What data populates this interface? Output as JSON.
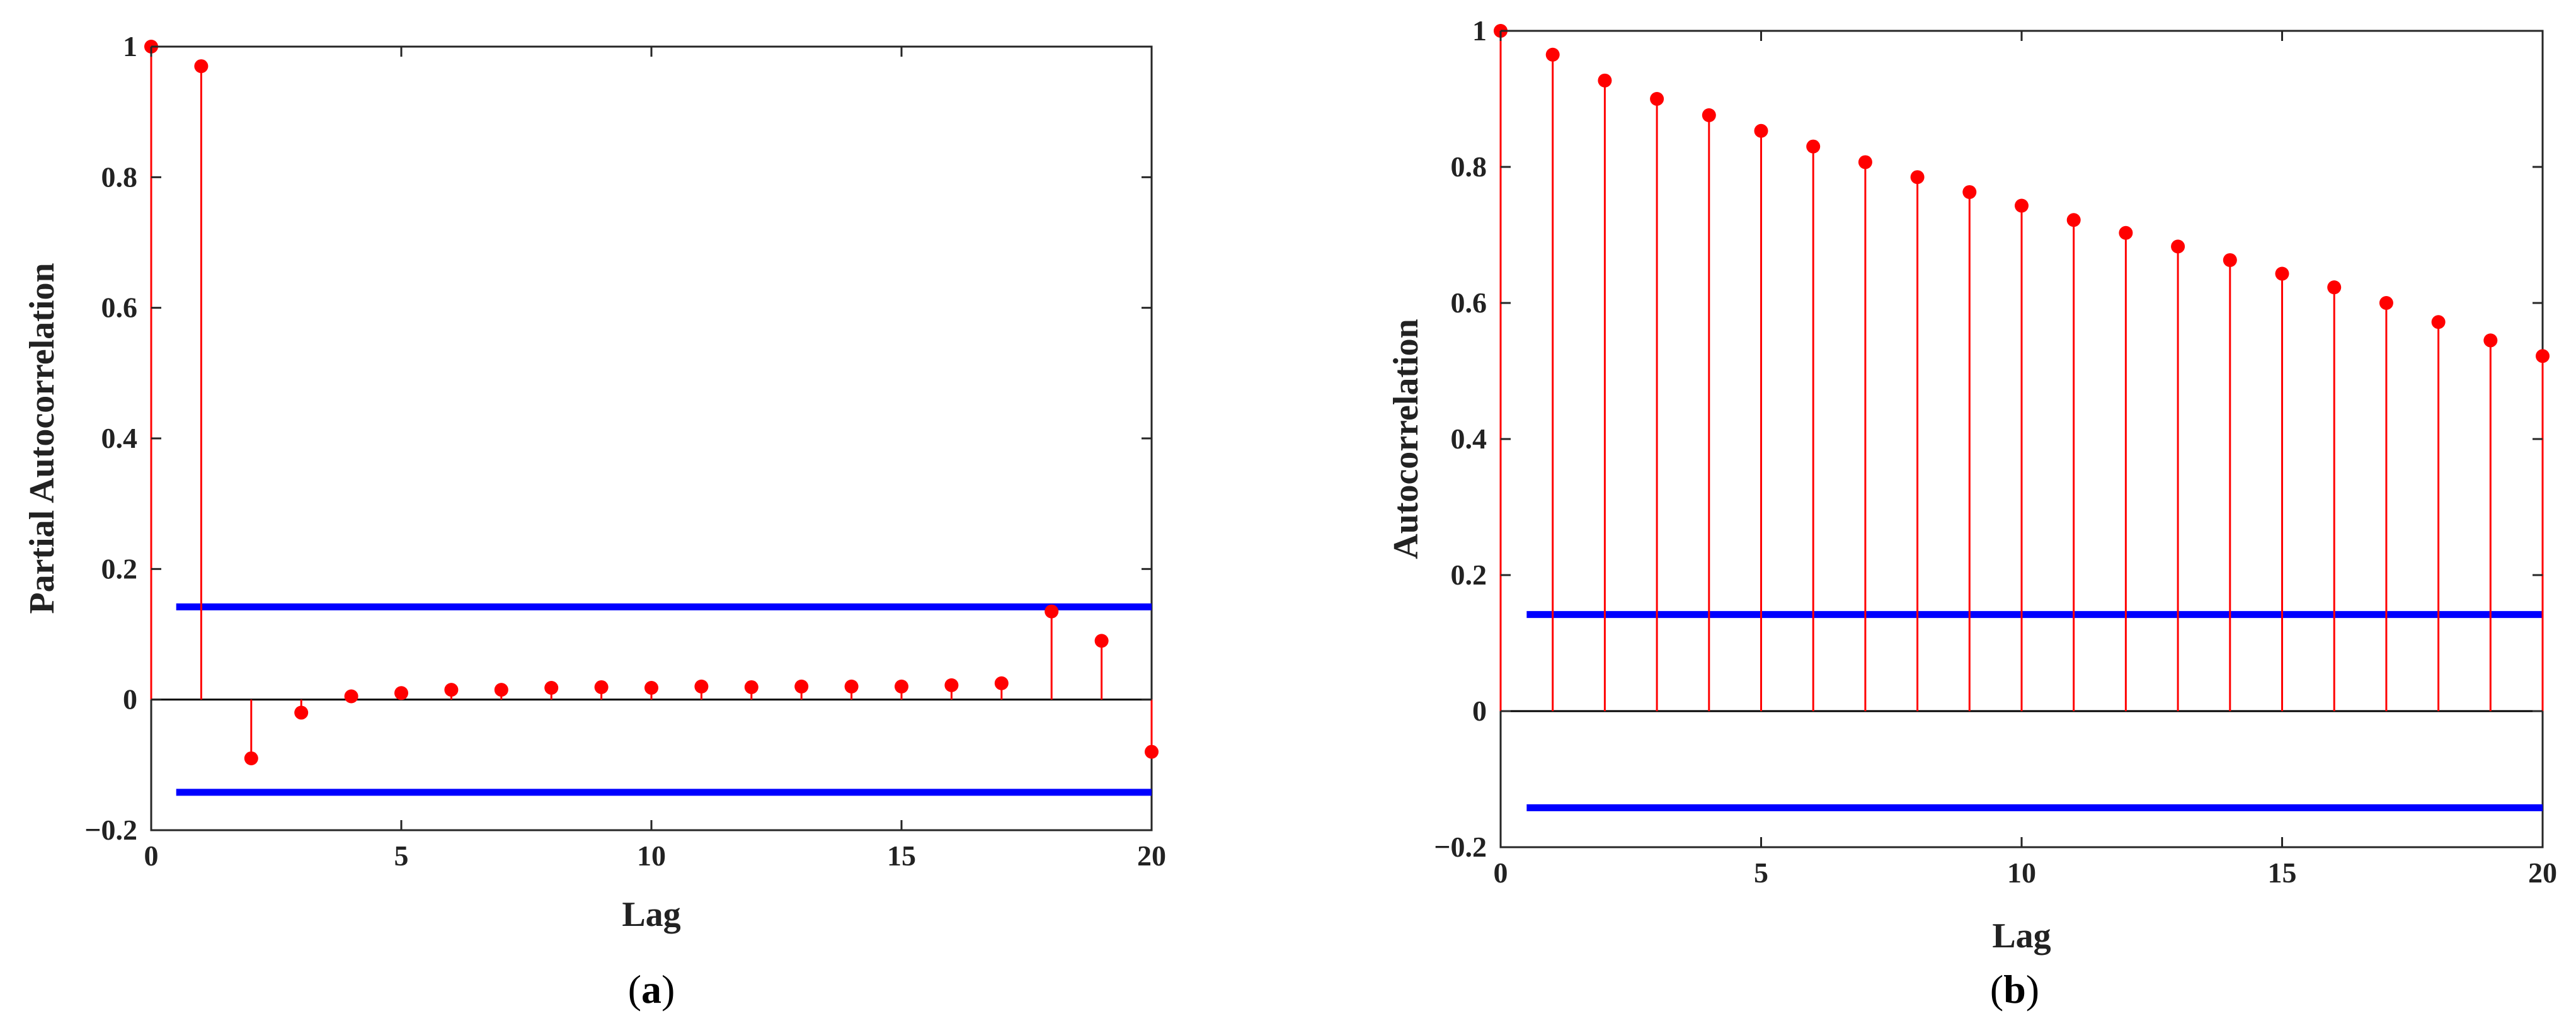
{
  "colors": {
    "stem": "#ff0000",
    "bound": "#0000ff",
    "axis": "#262626",
    "zero_line": "#000000"
  },
  "captions": {
    "a": {
      "open": "(",
      "letter": "a",
      "close": ")"
    },
    "b": {
      "open": "(",
      "letter": "b",
      "close": ")"
    }
  },
  "chart_data": [
    {
      "id": "a",
      "type": "stem",
      "title": "",
      "xlabel": "Lag",
      "ylabel": "Partial Autocorrelation",
      "xlim": [
        0,
        20
      ],
      "ylim": [
        -0.2,
        1
      ],
      "xticks": [
        0,
        5,
        10,
        15,
        20
      ],
      "yticks": [
        -0.2,
        0,
        0.2,
        0.4,
        0.6,
        0.8,
        1
      ],
      "ytick_labels": [
        "−0.2",
        "0",
        "0.2",
        "0.4",
        "0.6",
        "0.8",
        "1"
      ],
      "lags": [
        0,
        1,
        2,
        3,
        4,
        5,
        6,
        7,
        8,
        9,
        10,
        11,
        12,
        13,
        14,
        15,
        16,
        17,
        18,
        19,
        20
      ],
      "values": [
        1.0,
        0.97,
        -0.09,
        -0.02,
        0.005,
        0.01,
        0.015,
        0.015,
        0.018,
        0.019,
        0.018,
        0.02,
        0.019,
        0.02,
        0.02,
        0.02,
        0.022,
        0.025,
        0.135,
        0.09,
        -0.08
      ],
      "confidence_bounds": [
        0.142,
        -0.142
      ],
      "bound_xrange": [
        0.5,
        20
      ]
    },
    {
      "id": "b",
      "type": "stem",
      "title": "",
      "xlabel": "Lag",
      "ylabel": "Autocorrelation",
      "xlim": [
        0,
        20
      ],
      "ylim": [
        -0.2,
        1
      ],
      "xticks": [
        0,
        5,
        10,
        15,
        20
      ],
      "yticks": [
        -0.2,
        0,
        0.2,
        0.4,
        0.6,
        0.8,
        1
      ],
      "ytick_labels": [
        "−0.2",
        "0",
        "0.2",
        "0.4",
        "0.6",
        "0.8",
        "1"
      ],
      "lags": [
        0,
        1,
        2,
        3,
        4,
        5,
        6,
        7,
        8,
        9,
        10,
        11,
        12,
        13,
        14,
        15,
        16,
        17,
        18,
        19,
        20
      ],
      "values": [
        1.0,
        0.965,
        0.927,
        0.9,
        0.876,
        0.853,
        0.83,
        0.807,
        0.785,
        0.763,
        0.743,
        0.722,
        0.703,
        0.683,
        0.663,
        0.643,
        0.623,
        0.6,
        0.572,
        0.545,
        0.522
      ],
      "confidence_bounds": [
        0.142,
        -0.142
      ],
      "bound_xrange": [
        0.5,
        20
      ]
    }
  ]
}
